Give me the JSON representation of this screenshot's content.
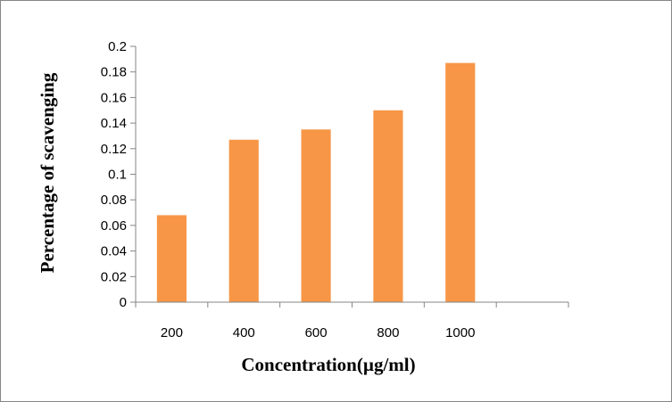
{
  "chart_data": {
    "type": "bar",
    "categories": [
      "200",
      "400",
      "600",
      "800",
      "1000",
      ""
    ],
    "values": [
      0.068,
      0.127,
      0.135,
      0.15,
      0.187,
      null
    ],
    "title": "",
    "xlabel": "Concentration(µg/ml)",
    "ylabel": "Percentage of scavenging",
    "ylim": [
      0,
      0.2
    ],
    "yticks": [
      "0",
      "0.02",
      "0.04",
      "0.06",
      "0.08",
      "0.1",
      "0.12",
      "0.14",
      "0.16",
      "0.18",
      "0.2"
    ],
    "grid": false,
    "legend": "none",
    "colors": {
      "bar": "#f79646",
      "axis": "#868686"
    }
  }
}
